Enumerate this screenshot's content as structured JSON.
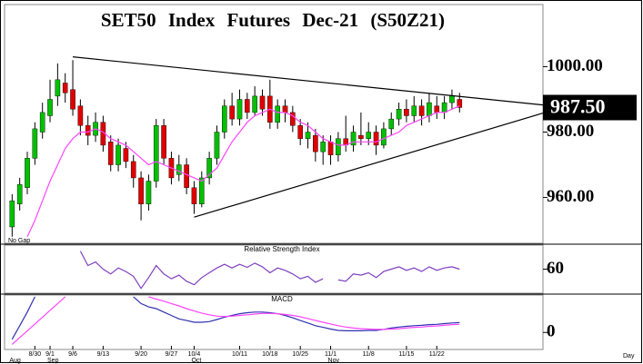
{
  "chart_data": {
    "type": "candlestick",
    "title": "SET50 Index Futures Dec-21 (S50Z21)",
    "x": [
      1,
      2,
      3,
      4,
      5,
      6,
      7,
      8,
      9,
      10,
      11,
      12,
      13,
      14,
      15,
      16,
      17,
      18,
      19,
      20,
      21,
      22,
      23,
      24,
      25,
      26,
      27,
      28,
      29,
      30,
      31,
      32,
      33,
      34,
      35,
      36,
      37,
      38,
      39,
      40,
      41,
      42,
      43,
      44,
      45,
      46,
      47,
      48,
      49,
      50,
      51,
      52,
      53,
      54,
      55,
      56,
      57,
      58,
      59,
      60
    ],
    "open": [
      951,
      958,
      963,
      972,
      980,
      985,
      991,
      995,
      993,
      988,
      982,
      979,
      983,
      977,
      970,
      975,
      971,
      966,
      958,
      965,
      982,
      972,
      967,
      970,
      963,
      958,
      966,
      972,
      980,
      988,
      984,
      990,
      986,
      991,
      991,
      983,
      988,
      986,
      982,
      978,
      979,
      974,
      977,
      973,
      978,
      976,
      979,
      978,
      980,
      976,
      981,
      984,
      987,
      985,
      988,
      985,
      988,
      986,
      989,
      990
    ],
    "high": [
      961,
      966,
      974,
      983,
      989,
      996,
      1001,
      998,
      1002,
      990,
      985,
      986,
      985,
      979,
      978,
      977,
      973,
      968,
      967,
      984,
      984,
      974,
      973,
      972,
      965,
      968,
      974,
      982,
      990,
      992,
      993,
      992,
      994,
      993,
      996,
      990,
      990,
      988,
      984,
      983,
      981,
      979,
      979,
      980,
      985,
      982,
      986,
      983,
      982,
      983,
      986,
      989,
      990,
      991,
      990,
      992,
      991,
      991,
      993,
      992
    ],
    "low": [
      948,
      956,
      961,
      970,
      978,
      983,
      988,
      989,
      985,
      979,
      976,
      977,
      974,
      968,
      968,
      969,
      963,
      953,
      956,
      963,
      970,
      964,
      965,
      961,
      955,
      957,
      964,
      970,
      978,
      982,
      982,
      984,
      985,
      985,
      981,
      981,
      983,
      980,
      976,
      975,
      971,
      970,
      970,
      971,
      974,
      974,
      976,
      976,
      973,
      975,
      979,
      982,
      983,
      983,
      982,
      983,
      984,
      984,
      987,
      986
    ],
    "close": [
      959,
      964,
      972,
      981,
      986,
      990,
      996,
      992,
      987,
      982,
      979,
      983,
      976,
      970,
      976,
      971,
      966,
      958,
      965,
      982,
      972,
      966,
      970,
      963,
      958,
      966,
      972,
      980,
      988,
      984,
      990,
      986,
      991,
      987,
      983,
      988,
      986,
      982,
      978,
      980,
      974,
      977,
      973,
      978,
      976,
      980,
      978,
      980,
      976,
      981,
      984,
      987,
      985,
      988,
      985,
      989,
      986,
      989,
      991,
      987.5
    ],
    "up_color": "#00c000",
    "down_color": "#e00000",
    "ma": {
      "color": "#ff44ff",
      "values": [
        null,
        null,
        948,
        953,
        959,
        965,
        970,
        975,
        978,
        980,
        980,
        981,
        980,
        978,
        977,
        976,
        974,
        972,
        970,
        971,
        970,
        969,
        968,
        967,
        966,
        965,
        967,
        969,
        973,
        977,
        980,
        983,
        985,
        986,
        987,
        986,
        986,
        985,
        983,
        982,
        980,
        978,
        977,
        976,
        976,
        977,
        977,
        977,
        977,
        978,
        979,
        980,
        982,
        983,
        984,
        985,
        986,
        986,
        987,
        988
      ]
    },
    "trendlines": [
      {
        "color": "#000000",
        "x": [
          9,
          71
        ],
        "y": [
          1003,
          988.3
        ]
      },
      {
        "color": "#000000",
        "x": [
          25,
          71
        ],
        "y": [
          954,
          985.8
        ]
      }
    ],
    "xlim": [
      0,
      71
    ],
    "ylim": [
      946,
      1019
    ],
    "yticks": [
      {
        "value": 1000,
        "label": "1000.00"
      },
      {
        "value": 980,
        "label": "980.00"
      },
      {
        "value": 960,
        "label": "960.00"
      }
    ],
    "last_price": {
      "value": 987.5,
      "label": "987.50"
    },
    "xticks": [
      {
        "value": 4,
        "label": "8/30"
      },
      {
        "value": 6,
        "label": "9/1"
      },
      {
        "value": 9,
        "label": "9/6"
      },
      {
        "value": 13,
        "label": "9/13"
      },
      {
        "value": 18,
        "label": "9/20"
      },
      {
        "value": 22,
        "label": "9/27"
      },
      {
        "value": 25,
        "label": "10/4"
      },
      {
        "value": 31,
        "label": "10/11"
      },
      {
        "value": 35,
        "label": "10/18"
      },
      {
        "value": 39,
        "label": "10/25"
      },
      {
        "value": 43,
        "label": "11/1"
      },
      {
        "value": 48,
        "label": "11/8"
      },
      {
        "value": 53,
        "label": "11/15"
      },
      {
        "value": 57,
        "label": "11/22"
      }
    ],
    "months": [
      {
        "value": 1,
        "label": "Aug"
      },
      {
        "value": 6,
        "label": "Sep"
      },
      {
        "value": 25,
        "label": "Oct"
      },
      {
        "value": 43,
        "label": "Nov"
      }
    ],
    "note": "No Gap",
    "x_label": "Day",
    "indicators": [
      {
        "type": "line",
        "title": "Relative Strength Index",
        "ylim": [
          20,
          100
        ],
        "yticks": [
          60
        ],
        "series": [
          {
            "color": "#8040c0",
            "values": [
              null,
              null,
              null,
              null,
              null,
              null,
              null,
              null,
              null,
              90,
              66,
              72,
              60,
              52,
              62,
              56,
              48,
              28,
              46,
              66,
              52,
              44,
              50,
              40,
              34,
              46,
              54,
              62,
              68,
              62,
              68,
              63,
              70,
              64,
              54,
              62,
              58,
              52,
              44,
              48,
              38,
              44,
              null,
              42,
              40,
              52,
              50,
              54,
              46,
              56,
              60,
              64,
              58,
              62,
              56,
              64,
              58,
              62,
              64,
              60
            ]
          }
        ]
      },
      {
        "type": "line",
        "title": "MACD",
        "ylim": [
          -5,
          11
        ],
        "yticks": [
          0
        ],
        "series": [
          {
            "color": "#3030b0",
            "values": [
              -2,
              2,
              6,
              10.5,
              null,
              null,
              null,
              null,
              null,
              null,
              null,
              null,
              null,
              null,
              null,
              null,
              10.5,
              8.5,
              7.5,
              7,
              6,
              5,
              4,
              3.5,
              3,
              3,
              3.2,
              3.8,
              4.5,
              5,
              5.5,
              5.8,
              6,
              6,
              5.8,
              5.5,
              5,
              4.3,
              3.5,
              2.8,
              2,
              1.5,
              1,
              0.6,
              0.5,
              0.5,
              0.5,
              0.6,
              0.6,
              0.9,
              1.3,
              1.6,
              1.8,
              2,
              2.1,
              2.3,
              2.4,
              2.6,
              2.8,
              2.9
            ]
          },
          {
            "color": "#ff44ff",
            "values": [
              -3.5,
              -1.5,
              0.5,
              2.5,
              4.5,
              6.5,
              8.5,
              10.5,
              null,
              null,
              null,
              null,
              null,
              null,
              null,
              null,
              null,
              null,
              10.5,
              9.8,
              9.2,
              8.5,
              7.8,
              7,
              6.3,
              5.7,
              5.2,
              4.8,
              4.7,
              4.8,
              5,
              5.2,
              5.4,
              5.6,
              5.6,
              5.5,
              5.3,
              5,
              4.6,
              4.1,
              3.5,
              3,
              2.5,
              2,
              1.6,
              1.3,
              1.1,
              1,
              0.9,
              0.9,
              1,
              1.1,
              1.3,
              1.5,
              1.6,
              1.8,
              1.9,
              2.1,
              2.3,
              2.4
            ]
          }
        ]
      }
    ]
  }
}
